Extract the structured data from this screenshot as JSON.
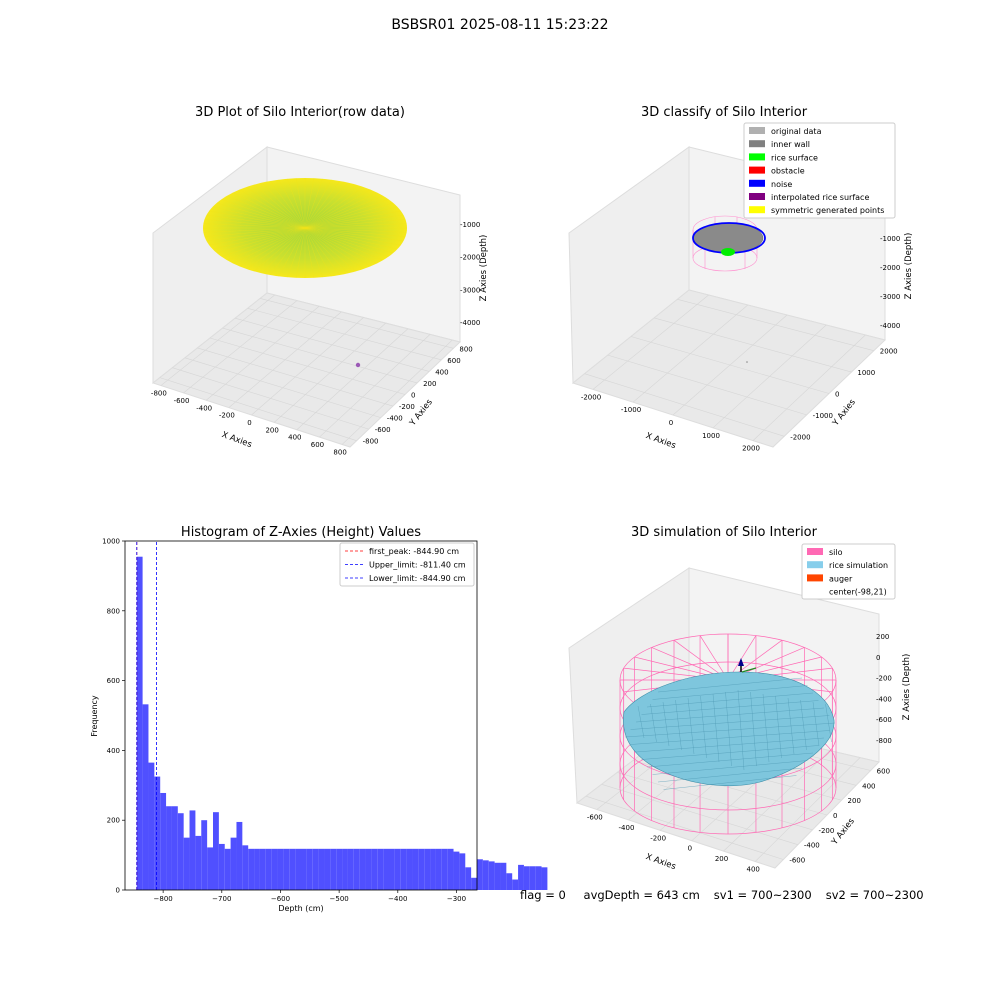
{
  "suptitle": "BSBSR01 2025-08-11 15:23:22",
  "chart_data": [
    {
      "type": "scatter",
      "title": "3D Plot of Silo Interior(row data)",
      "xlabel": "X Axies",
      "ylabel": "Y Axies",
      "zlabel": "Z Axies (Depth)",
      "x_ticks": [
        "-800",
        "-600",
        "-400",
        "-200",
        "0",
        "200",
        "400",
        "600",
        "800"
      ],
      "y_ticks": [
        "-800",
        "-600",
        "-400",
        "-200",
        "0",
        "200",
        "400",
        "600",
        "800"
      ],
      "z_ticks": [
        "-1000",
        "-2000",
        "-3000",
        "-4000"
      ],
      "xlim": [
        -850,
        850
      ],
      "ylim": [
        -850,
        850
      ],
      "zlim": [
        -4500,
        -300
      ],
      "colors": {
        "edge": "#f6e81a",
        "center": "#9fd83a",
        "outlier": "#9b59b6"
      }
    },
    {
      "type": "scatter",
      "title": "3D classify of Silo Interior",
      "xlabel": "X Axies",
      "ylabel": "Y Axies",
      "zlabel": "Z Axies (Depth)",
      "x_ticks": [
        "-2000",
        "-1000",
        "0",
        "1000",
        "2000"
      ],
      "y_ticks": [
        "-2000",
        "-1000",
        "0",
        "1000",
        "2000"
      ],
      "z_ticks": [
        "0",
        "-1000",
        "-2000",
        "-3000",
        "-4000"
      ],
      "legend": [
        {
          "label": "original data",
          "color": "#b0b0b0"
        },
        {
          "label": "inner wall",
          "color": "#808080"
        },
        {
          "label": "rice surface",
          "color": "#00ff00"
        },
        {
          "label": "obstacle",
          "color": "#ff0000"
        },
        {
          "label": "noise",
          "color": "#0000ff"
        },
        {
          "label": "interpolated rice surface",
          "color": "#800080"
        },
        {
          "label": "symmetric generated points",
          "color": "#ffff00"
        }
      ]
    },
    {
      "type": "bar",
      "title": "Histogram of Z-Axies (Height) Values",
      "xlabel": "Depth (cm)",
      "ylabel": "Frequency",
      "xlim": [
        -865,
        -265
      ],
      "ylim": [
        0,
        1000
      ],
      "x_ticks": [
        "-800",
        "-700",
        "-600",
        "-500",
        "-400",
        "-300"
      ],
      "y_ticks": [
        "0",
        "200",
        "400",
        "600",
        "800",
        "1000"
      ],
      "bin_start": -845,
      "bin_width": 10,
      "values": [
        955,
        532,
        365,
        325,
        278,
        240,
        240,
        220,
        150,
        228,
        155,
        200,
        122,
        223,
        132,
        118,
        150,
        195,
        128,
        118,
        118,
        118,
        118,
        118,
        118,
        118,
        118,
        118,
        118,
        118,
        118,
        118,
        118,
        118,
        118,
        118,
        118,
        118,
        118,
        118,
        118,
        118,
        118,
        118,
        118,
        118,
        118,
        118,
        118,
        118,
        118,
        118,
        118,
        118,
        110,
        105,
        65,
        35,
        88,
        85,
        82,
        78,
        78,
        48,
        30,
        72,
        68,
        68,
        68,
        65
      ],
      "lines": [
        {
          "label": "first_peak: -844.90 cm",
          "x": -844.9,
          "color": "#ff0000"
        },
        {
          "label": "Upper_limit: -811.40 cm",
          "x": -811.4,
          "color": "#0000ff"
        },
        {
          "label": "Lower_limit: -844.90 cm",
          "x": -844.9,
          "color": "#0000ff"
        }
      ],
      "color": "#5050ff"
    },
    {
      "type": "surface",
      "title": "3D simulation of Silo Interior",
      "xlabel": "X Axies",
      "ylabel": "Y Axies",
      "zlabel": "Z Axies (Depth)",
      "x_ticks": [
        "-600",
        "-400",
        "-200",
        "0",
        "200",
        "400"
      ],
      "y_ticks": [
        "-600",
        "-400",
        "-200",
        "0",
        "200",
        "400",
        "600"
      ],
      "z_ticks": [
        "200",
        "0",
        "-200",
        "-400",
        "-600",
        "-800"
      ],
      "legend": [
        {
          "label": "silo",
          "color": "#ff69b4"
        },
        {
          "label": "rice simulation",
          "color": "#87ceeb"
        },
        {
          "label": "auger",
          "color": "#ff4500"
        },
        {
          "label": "center(-98,21)",
          "color": ""
        }
      ]
    }
  ],
  "footer": {
    "flag": "flag = 0",
    "avg_depth": "avgDepth = 643 cm",
    "sv1": "sv1 = 700~2300",
    "sv2": "sv2 = 700~2300"
  }
}
